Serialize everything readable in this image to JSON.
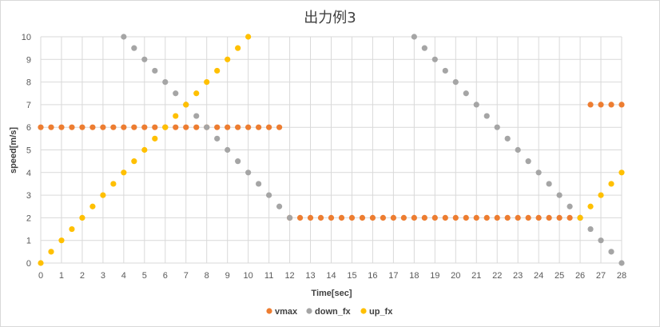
{
  "chart_data": {
    "type": "scatter",
    "title": "出力例3",
    "xlabel": "Time[sec]",
    "ylabel": "speed[m/s]",
    "xlim": [
      0,
      28
    ],
    "ylim": [
      0,
      10
    ],
    "x_ticks": [
      0,
      1,
      2,
      3,
      4,
      5,
      6,
      7,
      8,
      9,
      10,
      11,
      12,
      13,
      14,
      15,
      16,
      17,
      18,
      19,
      20,
      21,
      22,
      23,
      24,
      25,
      26,
      27,
      28
    ],
    "y_ticks": [
      0,
      1,
      2,
      3,
      4,
      5,
      6,
      7,
      8,
      9,
      10
    ],
    "grid": true,
    "legend_position": "bottom",
    "series": [
      {
        "name": "vmax",
        "color": "#ED7D31",
        "points": [
          [
            0,
            6
          ],
          [
            0.5,
            6
          ],
          [
            1,
            6
          ],
          [
            1.5,
            6
          ],
          [
            2,
            6
          ],
          [
            2.5,
            6
          ],
          [
            3,
            6
          ],
          [
            3.5,
            6
          ],
          [
            4,
            6
          ],
          [
            4.5,
            6
          ],
          [
            5,
            6
          ],
          [
            5.5,
            6
          ],
          [
            6,
            6
          ],
          [
            6.5,
            6
          ],
          [
            7,
            6
          ],
          [
            7.5,
            6
          ],
          [
            8,
            6
          ],
          [
            8.5,
            6
          ],
          [
            9,
            6
          ],
          [
            9.5,
            6
          ],
          [
            10,
            6
          ],
          [
            10.5,
            6
          ],
          [
            11,
            6
          ],
          [
            11.5,
            6
          ],
          [
            12,
            2
          ],
          [
            12.5,
            2
          ],
          [
            13,
            2
          ],
          [
            13.5,
            2
          ],
          [
            14,
            2
          ],
          [
            14.5,
            2
          ],
          [
            15,
            2
          ],
          [
            15.5,
            2
          ],
          [
            16,
            2
          ],
          [
            16.5,
            2
          ],
          [
            17,
            2
          ],
          [
            17.5,
            2
          ],
          [
            18,
            2
          ],
          [
            18.5,
            2
          ],
          [
            19,
            2
          ],
          [
            19.5,
            2
          ],
          [
            20,
            2
          ],
          [
            20.5,
            2
          ],
          [
            21,
            2
          ],
          [
            21.5,
            2
          ],
          [
            22,
            2
          ],
          [
            22.5,
            2
          ],
          [
            23,
            2
          ],
          [
            23.5,
            2
          ],
          [
            24,
            2
          ],
          [
            24.5,
            2
          ],
          [
            25,
            2
          ],
          [
            25.5,
            2
          ],
          [
            26,
            2
          ],
          [
            26.5,
            7
          ],
          [
            27,
            7
          ],
          [
            27.5,
            7
          ],
          [
            28,
            7
          ]
        ]
      },
      {
        "name": "down_fx",
        "color": "#A5A5A5",
        "points": [
          [
            4,
            10
          ],
          [
            4.5,
            9.5
          ],
          [
            5,
            9
          ],
          [
            5.5,
            8.5
          ],
          [
            6,
            8
          ],
          [
            6.5,
            7.5
          ],
          [
            7,
            7
          ],
          [
            7.5,
            6.5
          ],
          [
            8,
            6
          ],
          [
            8.5,
            5.5
          ],
          [
            9,
            5
          ],
          [
            9.5,
            4.5
          ],
          [
            10,
            4
          ],
          [
            10.5,
            3.5
          ],
          [
            11,
            3
          ],
          [
            11.5,
            2.5
          ],
          [
            12,
            2
          ],
          [
            18,
            10
          ],
          [
            18.5,
            9.5
          ],
          [
            19,
            9
          ],
          [
            19.5,
            8.5
          ],
          [
            20,
            8
          ],
          [
            20.5,
            7.5
          ],
          [
            21,
            7
          ],
          [
            21.5,
            6.5
          ],
          [
            22,
            6
          ],
          [
            22.5,
            5.5
          ],
          [
            23,
            5
          ],
          [
            23.5,
            4.5
          ],
          [
            24,
            4
          ],
          [
            24.5,
            3.5
          ],
          [
            25,
            3
          ],
          [
            25.5,
            2.5
          ],
          [
            26,
            2
          ],
          [
            26.5,
            1.5
          ],
          [
            27,
            1
          ],
          [
            27.5,
            0.5
          ],
          [
            28,
            0
          ]
        ]
      },
      {
        "name": "up_fx",
        "color": "#FFC000",
        "points": [
          [
            0,
            0
          ],
          [
            0.5,
            0.5
          ],
          [
            1,
            1
          ],
          [
            1.5,
            1.5
          ],
          [
            2,
            2
          ],
          [
            2.5,
            2.5
          ],
          [
            3,
            3
          ],
          [
            3.5,
            3.5
          ],
          [
            4,
            4
          ],
          [
            4.5,
            4.5
          ],
          [
            5,
            5
          ],
          [
            5.5,
            5.5
          ],
          [
            6,
            6
          ],
          [
            6.5,
            6.5
          ],
          [
            7,
            7
          ],
          [
            7.5,
            7.5
          ],
          [
            8,
            8
          ],
          [
            8.5,
            8.5
          ],
          [
            9,
            9
          ],
          [
            9.5,
            9.5
          ],
          [
            10,
            10
          ],
          [
            26,
            2
          ],
          [
            26.5,
            2.5
          ],
          [
            27,
            3
          ],
          [
            27.5,
            3.5
          ],
          [
            28,
            4
          ]
        ]
      }
    ]
  }
}
